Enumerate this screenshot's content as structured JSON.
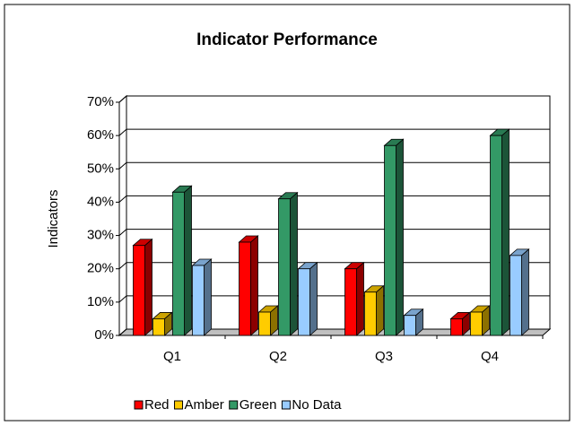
{
  "chart_data": {
    "type": "bar3d",
    "title": "Indicator Performance",
    "y_label": "Indicators",
    "categories": [
      "Q1",
      "Q2",
      "Q3",
      "Q4"
    ],
    "series": [
      {
        "name": "Red",
        "color": "#ff0000",
        "values": [
          27,
          28,
          20,
          5
        ]
      },
      {
        "name": "Amber",
        "color": "#ffcc00",
        "values": [
          5,
          7,
          13,
          7
        ]
      },
      {
        "name": "Green",
        "color": "#339966",
        "values": [
          43,
          41,
          57,
          60
        ]
      },
      {
        "name": "No Data",
        "color": "#99ccff",
        "values": [
          21,
          20,
          6,
          24
        ]
      }
    ],
    "ylim": [
      0,
      70
    ],
    "yticks": [
      {
        "value": 0,
        "label": "0%"
      },
      {
        "value": 10,
        "label": "10%"
      },
      {
        "value": 20,
        "label": "20%"
      },
      {
        "value": 30,
        "label": "30%"
      },
      {
        "value": 40,
        "label": "40%"
      },
      {
        "value": 50,
        "label": "50%"
      },
      {
        "value": 60,
        "label": "60%"
      },
      {
        "value": 70,
        "label": "70%"
      }
    ],
    "grid": true,
    "legend": "bottom"
  }
}
